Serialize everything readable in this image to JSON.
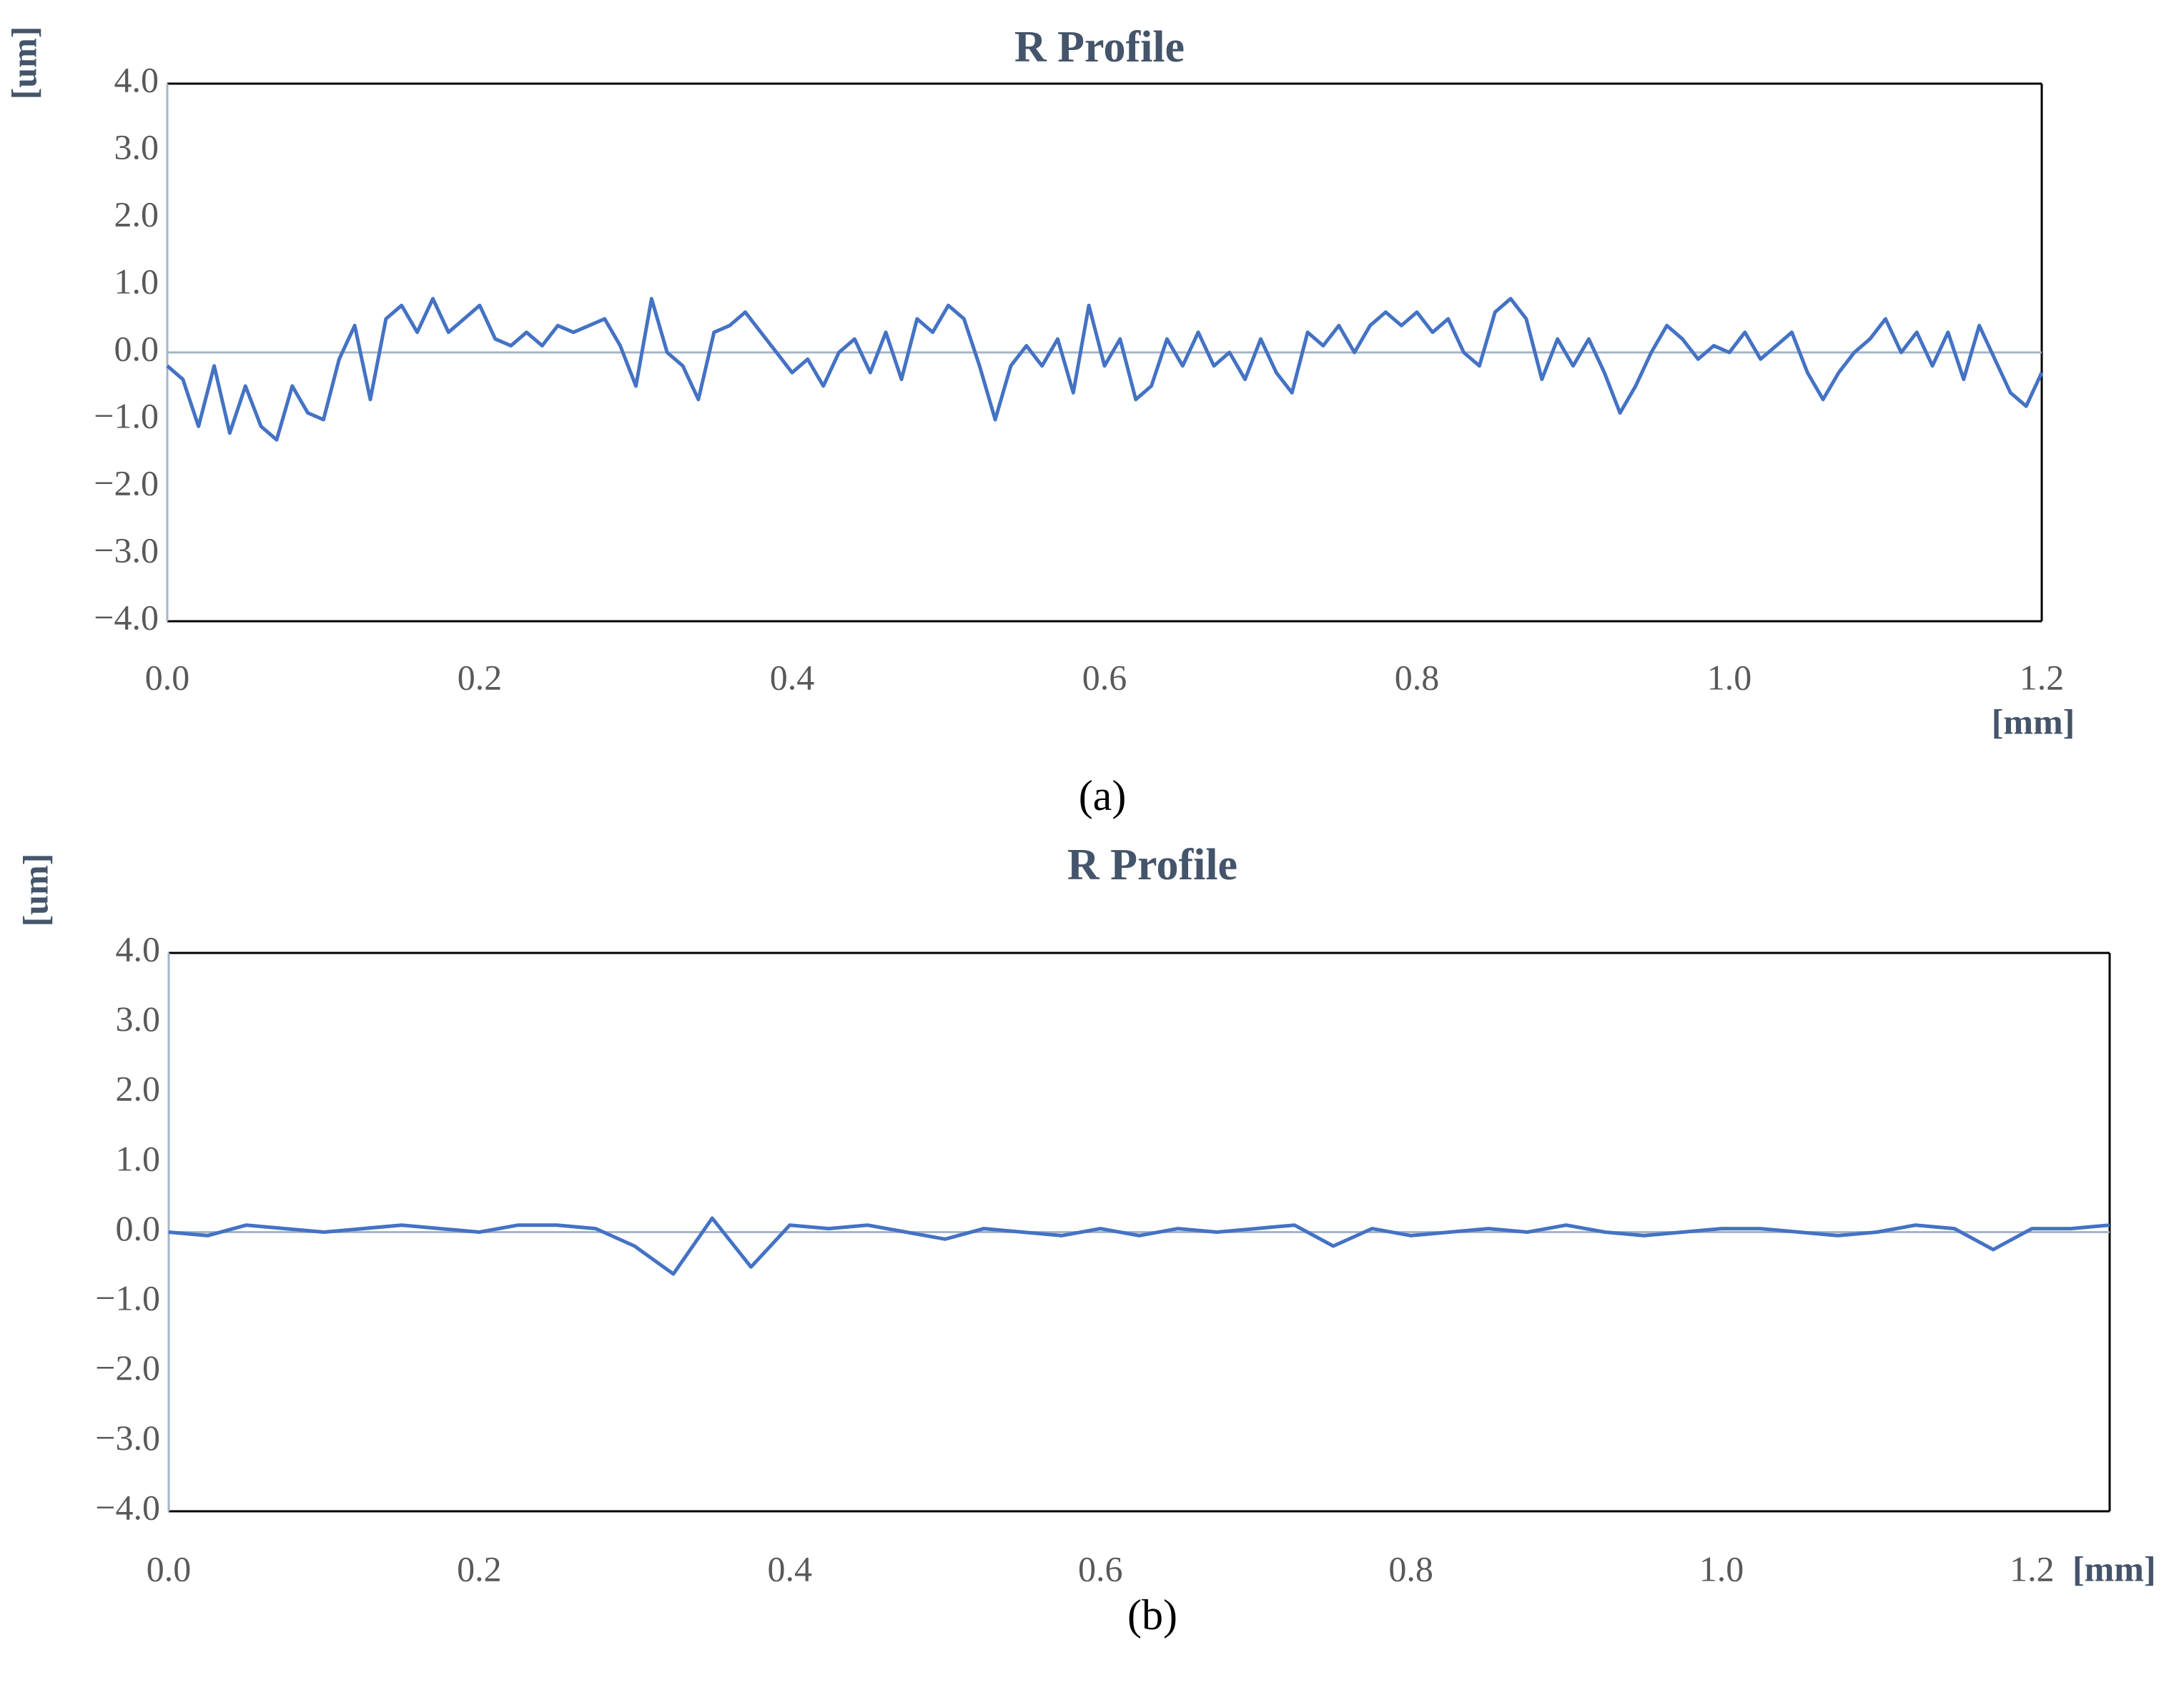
{
  "chart_data": [
    {
      "type": "line",
      "title": "R Profile",
      "y_label": "[um]",
      "x_label": "[mm]",
      "caption": "(a)",
      "xlim": [
        0,
        1.2
      ],
      "ylim": [
        -4,
        4
      ],
      "xticks": [
        {
          "value": 0,
          "label": "0.0"
        },
        0.2,
        0.4,
        0.6,
        0.8,
        {
          "value": 1,
          "label": "1.0"
        },
        1.2
      ],
      "yticks": [
        {
          "value": 4,
          "label": "4.0"
        },
        {
          "value": 3,
          "label": "3.0"
        },
        {
          "value": 2,
          "label": "2.0"
        },
        {
          "value": 1,
          "label": "1.0"
        },
        {
          "value": 0,
          "label": "0.0"
        },
        {
          "value": -1,
          "label": "−1.0"
        },
        {
          "value": -2,
          "label": "−2.0"
        },
        {
          "value": -3,
          "label": "−3.0"
        },
        {
          "value": -4,
          "label": "−4.0"
        }
      ],
      "x": [
        0,
        0.01,
        0.02,
        0.03,
        0.04,
        0.05,
        0.06,
        0.07,
        0.08,
        0.09,
        0.1,
        0.11,
        0.12,
        0.13,
        0.14,
        0.15,
        0.16,
        0.17,
        0.18,
        0.19,
        0.2,
        0.21,
        0.22,
        0.23,
        0.24,
        0.25,
        0.26,
        0.27,
        0.28,
        0.29,
        0.3,
        0.31,
        0.32,
        0.33,
        0.34,
        0.35,
        0.36,
        0.37,
        0.38,
        0.39,
        0.4,
        0.41,
        0.42,
        0.43,
        0.44,
        0.45,
        0.46,
        0.47,
        0.48,
        0.49,
        0.5,
        0.51,
        0.52,
        0.53,
        0.54,
        0.55,
        0.56,
        0.57,
        0.58,
        0.59,
        0.6,
        0.61,
        0.62,
        0.63,
        0.64,
        0.65,
        0.66,
        0.67,
        0.68,
        0.69,
        0.7,
        0.71,
        0.72,
        0.73,
        0.74,
        0.75,
        0.76,
        0.77,
        0.78,
        0.79,
        0.8,
        0.81,
        0.82,
        0.83,
        0.84,
        0.85,
        0.86,
        0.87,
        0.88,
        0.89,
        0.9,
        0.91,
        0.92,
        0.93,
        0.94,
        0.95,
        0.96,
        0.97,
        0.98,
        0.99,
        1,
        1.01,
        1.02,
        1.03,
        1.04,
        1.05,
        1.06,
        1.07,
        1.08,
        1.09,
        1.1,
        1.11,
        1.12,
        1.13,
        1.14,
        1.15,
        1.16,
        1.17,
        1.18,
        1.19,
        1.2
      ],
      "series": [
        {
          "color": "#4472c4",
          "values": [
            -0.2,
            -0.4,
            -1.1,
            -0.2,
            -1.2,
            -0.5,
            -1.1,
            -1.3,
            -0.5,
            -0.9,
            -1.0,
            -0.1,
            0.4,
            -0.7,
            0.5,
            0.7,
            0.3,
            0.8,
            0.3,
            0.5,
            0.7,
            0.2,
            0.1,
            0.3,
            0.1,
            0.4,
            0.3,
            0.4,
            0.5,
            0.1,
            -0.5,
            0.8,
            0.0,
            -0.2,
            -0.7,
            0.3,
            0.4,
            0.6,
            0.3,
            0.0,
            -0.3,
            -0.1,
            -0.5,
            0.0,
            0.2,
            -0.3,
            0.3,
            -0.4,
            0.5,
            0.3,
            0.7,
            0.5,
            -0.2,
            -1.0,
            -0.2,
            0.1,
            -0.2,
            0.2,
            -0.6,
            0.7,
            -0.2,
            0.2,
            -0.7,
            -0.5,
            0.2,
            -0.2,
            0.3,
            -0.2,
            0.0,
            -0.4,
            0.2,
            -0.3,
            -0.6,
            0.3,
            0.1,
            0.4,
            0.0,
            0.4,
            0.6,
            0.4,
            0.6,
            0.3,
            0.5,
            0.0,
            -0.2,
            0.6,
            0.8,
            0.5,
            -0.4,
            0.2,
            -0.2,
            0.2,
            -0.3,
            -0.9,
            -0.5,
            0.0,
            0.4,
            0.2,
            -0.1,
            0.1,
            0.0,
            0.3,
            -0.1,
            0.1,
            0.3,
            -0.3,
            -0.7,
            -0.3,
            0.0,
            0.2,
            0.5,
            0.0,
            0.3,
            -0.2,
            0.3,
            -0.4,
            0.4,
            -0.1,
            -0.6,
            -0.8,
            -0.3
          ]
        }
      ]
    },
    {
      "type": "line",
      "title": "R Profile",
      "y_label": "[um]",
      "x_label": "[mm]",
      "caption": "(b)",
      "xlim": [
        0,
        1.25
      ],
      "ylim": [
        -4,
        4
      ],
      "xticks": [
        {
          "value": 0,
          "label": "0.0"
        },
        0.2,
        0.4,
        0.6,
        0.8,
        {
          "value": 1,
          "label": "1.0"
        },
        1.2
      ],
      "yticks": [
        {
          "value": 4,
          "label": "4.0"
        },
        {
          "value": 3,
          "label": "3.0"
        },
        {
          "value": 2,
          "label": "2.0"
        },
        {
          "value": 1,
          "label": "1.0"
        },
        {
          "value": 0,
          "label": "0.0"
        },
        {
          "value": -1,
          "label": "−1.0"
        },
        {
          "value": -2,
          "label": "−2.0"
        },
        {
          "value": -3,
          "label": "−3.0"
        },
        {
          "value": -4,
          "label": "−4.0"
        }
      ],
      "x": [
        0,
        0.025,
        0.05,
        0.075,
        0.1,
        0.125,
        0.15,
        0.175,
        0.2,
        0.225,
        0.25,
        0.275,
        0.3,
        0.325,
        0.35,
        0.375,
        0.4,
        0.425,
        0.45,
        0.475,
        0.5,
        0.525,
        0.55,
        0.575,
        0.6,
        0.625,
        0.65,
        0.675,
        0.7,
        0.725,
        0.75,
        0.775,
        0.8,
        0.825,
        0.85,
        0.875,
        0.9,
        0.925,
        0.95,
        0.975,
        1,
        1.025,
        1.05,
        1.075,
        1.1,
        1.125,
        1.15,
        1.175,
        1.2,
        1.225,
        1.25
      ],
      "series": [
        {
          "color": "#4472c4",
          "values": [
            0.0,
            -0.05,
            0.1,
            0.05,
            0.0,
            0.05,
            0.1,
            0.05,
            0.0,
            0.1,
            0.1,
            0.05,
            -0.2,
            -0.6,
            0.2,
            -0.5,
            0.1,
            0.05,
            0.1,
            0.0,
            -0.1,
            0.05,
            0.0,
            -0.05,
            0.05,
            -0.05,
            0.05,
            0.0,
            0.05,
            0.1,
            -0.2,
            0.05,
            -0.05,
            0.0,
            0.05,
            0.0,
            0.1,
            0.0,
            -0.05,
            0.0,
            0.05,
            0.05,
            0.0,
            -0.05,
            0.0,
            0.1,
            0.05,
            -0.25,
            0.05,
            0.05,
            0.1
          ]
        }
      ]
    }
  ]
}
